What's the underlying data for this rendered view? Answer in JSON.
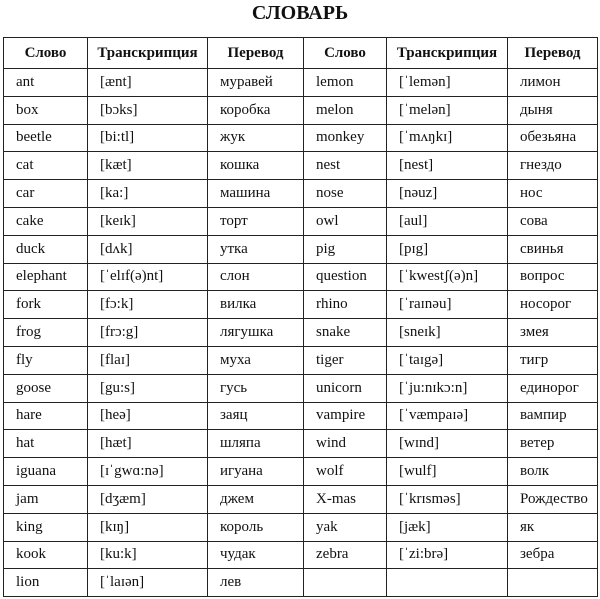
{
  "header": {
    "title": "СЛОВАРЬ"
  },
  "table": {
    "columns": [
      "Слово",
      "Транскрипция",
      "Перевод",
      "Слово",
      "Транскрипция",
      "Перевод"
    ],
    "rows": [
      [
        "ant",
        "[ænt]",
        "муравей",
        "lemon",
        "[ˈlemən]",
        "лимон"
      ],
      [
        "box",
        "[bɔks]",
        "коробка",
        "melon",
        "[ˈmelən]",
        "дыня"
      ],
      [
        "beetle",
        "[bi:tl]",
        "жук",
        "monkey",
        "[ˈmʌŋkɪ]",
        "обезьяна"
      ],
      [
        "cat",
        "[kæt]",
        "кошка",
        "nest",
        "[nest]",
        "гнездо"
      ],
      [
        "car",
        "[ka:]",
        "машина",
        "nose",
        "[nəuz]",
        "нос"
      ],
      [
        "cake",
        "[keɪk]",
        "торт",
        "owl",
        "[aul]",
        "сова"
      ],
      [
        "duck",
        "[dʌk]",
        "утка",
        "pig",
        "[pɪg]",
        "свинья"
      ],
      [
        "elephant",
        "[ˈelɪf(ə)nt]",
        "слон",
        "question",
        "[ˈkwestʃ(ə)n]",
        "вопрос"
      ],
      [
        "fork",
        "[fɔ:k]",
        "вилка",
        "rhino",
        "[ˈraɪnəu]",
        "носорог"
      ],
      [
        "frog",
        "[frɔ:g]",
        "лягушка",
        "snake",
        "[sneɪk]",
        "змея"
      ],
      [
        "fly",
        "[flaɪ]",
        "муха",
        "tiger",
        "[ˈtaɪgə]",
        "тигр"
      ],
      [
        "goose",
        "[gu:s]",
        "гусь",
        "unicorn",
        "[ˈju:nɪkɔ:n]",
        "единорог"
      ],
      [
        "hare",
        "[heə]",
        "заяц",
        "vampire",
        "[ˈvæmpaɪə]",
        "вампир"
      ],
      [
        "hat",
        "[hæt]",
        "шляпа",
        "wind",
        "[wɪnd]",
        "ветер"
      ],
      [
        "iguana",
        "[ɪˈgwɑ:nə]",
        "игуана",
        "wolf",
        "[wulf]",
        "волк"
      ],
      [
        "jam",
        "[dʒæm]",
        "джем",
        "X-mas",
        "[ˈkrɪsməs]",
        "Рождество"
      ],
      [
        "king",
        "[kɪŋ]",
        "король",
        "yak",
        "[jæk]",
        "як"
      ],
      [
        "kook",
        "[ku:k]",
        "чудак",
        "zebra",
        "[ˈzi:brə]",
        "зебра"
      ],
      [
        "lion",
        "[ˈlaɪən]",
        "лев"
      ]
    ]
  }
}
